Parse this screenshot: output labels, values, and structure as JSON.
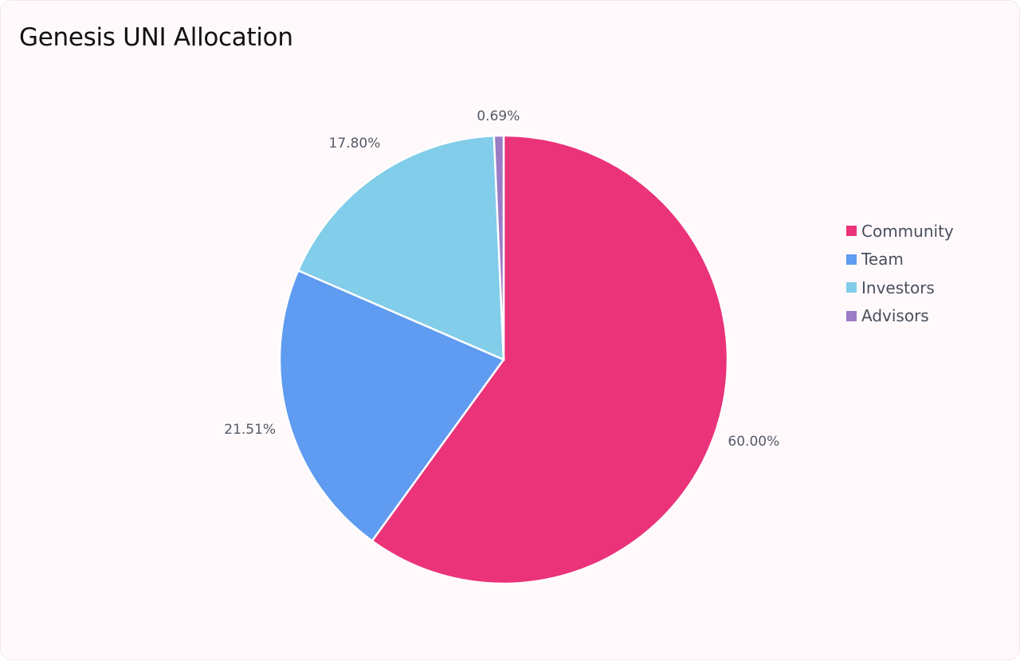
{
  "chart_data": {
    "type": "pie",
    "title": "Genesis UNI Allocation",
    "start_angle": "top, clockwise",
    "legend_position": "right",
    "series": [
      {
        "name": "Community",
        "value": 60.0,
        "label": "60.00%",
        "color": "#eb337a"
      },
      {
        "name": "Team",
        "value": 21.51,
        "label": "21.51%",
        "color": "#5f9bf0"
      },
      {
        "name": "Investors",
        "value": 17.8,
        "label": "17.80%",
        "color": "#81cdea"
      },
      {
        "name": "Advisors",
        "value": 0.69,
        "label": "0.69%",
        "color": "#9a7cc6"
      }
    ]
  },
  "background": "#fff9fc"
}
